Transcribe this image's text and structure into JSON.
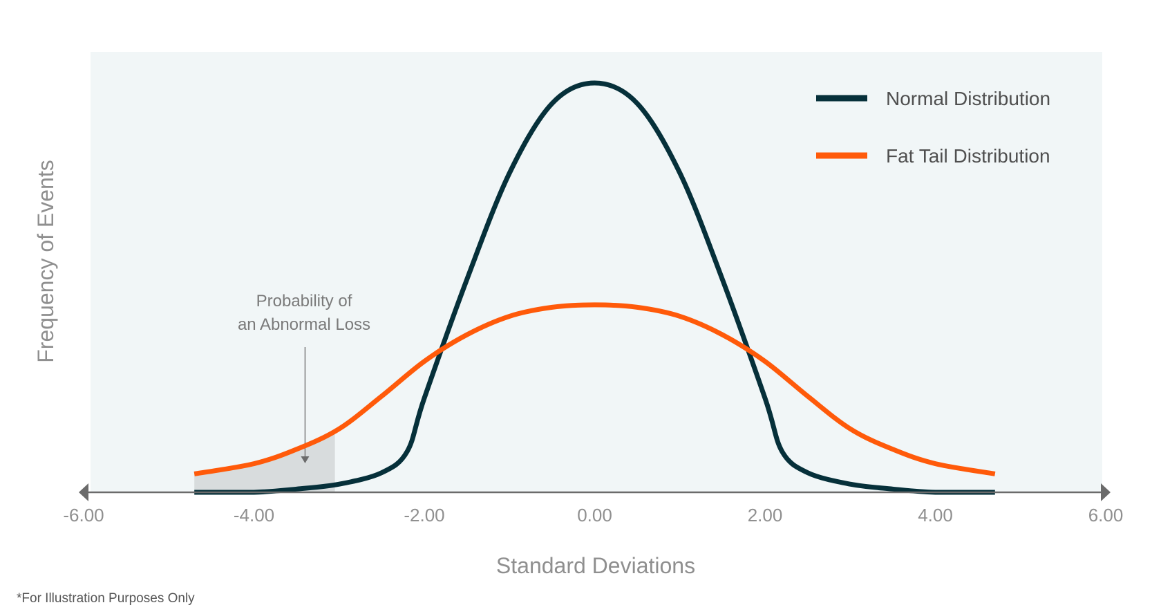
{
  "chart_data": {
    "type": "line",
    "xlabel": "Standard Deviations",
    "ylabel": "Frequency of Events",
    "xlim": [
      -6,
      6
    ],
    "x_ticks": [
      "-6.00",
      "-4.00",
      "-2.00",
      "0.00",
      "2.00",
      "4.00",
      "6.00"
    ],
    "x_tick_values": [
      -6,
      -4,
      -2,
      0,
      2,
      4,
      6
    ],
    "ylim": [
      0,
      1.08
    ],
    "x_range_plotted": [
      -4.7,
      4.7
    ],
    "grid": false,
    "legend_position": "top-right",
    "series": [
      {
        "name": "Normal Distribution",
        "color": "#06303a",
        "x": [
          -4.7,
          -4.0,
          -3.5,
          -3.0,
          -2.5,
          -2.2,
          -2.0,
          -1.5,
          -1.0,
          -0.5,
          0.0,
          0.5,
          1.0,
          1.5,
          2.0,
          2.2,
          2.5,
          3.0,
          3.5,
          4.0,
          4.7
        ],
        "y": [
          0.0,
          0.0,
          0.008,
          0.02,
          0.048,
          0.1,
          0.23,
          0.52,
          0.78,
          0.95,
          1.0,
          0.95,
          0.78,
          0.52,
          0.23,
          0.1,
          0.048,
          0.02,
          0.008,
          0.0,
          0.0
        ]
      },
      {
        "name": "Fat Tail Distribution",
        "color": "#ff5a0a",
        "x": [
          -4.7,
          -4.0,
          -3.5,
          -3.0,
          -2.5,
          -2.0,
          -1.5,
          -1.0,
          -0.5,
          0.0,
          0.5,
          1.0,
          1.5,
          2.0,
          2.5,
          3.0,
          3.5,
          4.0,
          4.7
        ],
        "y": [
          0.045,
          0.07,
          0.105,
          0.155,
          0.235,
          0.32,
          0.385,
          0.43,
          0.452,
          0.458,
          0.452,
          0.43,
          0.385,
          0.32,
          0.235,
          0.155,
          0.105,
          0.07,
          0.045
        ]
      }
    ],
    "shaded_region": {
      "x_from": -4.7,
      "x_to": -3.05,
      "under_series": "Fat Tail Distribution"
    },
    "annotation": {
      "lines": [
        "Probability of",
        "an Abnormal Loss"
      ],
      "arrow_x": -3.4
    },
    "footnote": "*For Illustration Purposes Only"
  },
  "colors": {
    "plot_background": "#f1f6f7",
    "axis": "#6b6b6b",
    "shaded_area": "#d8dcdd",
    "tick_text": "#8f8f8f"
  }
}
